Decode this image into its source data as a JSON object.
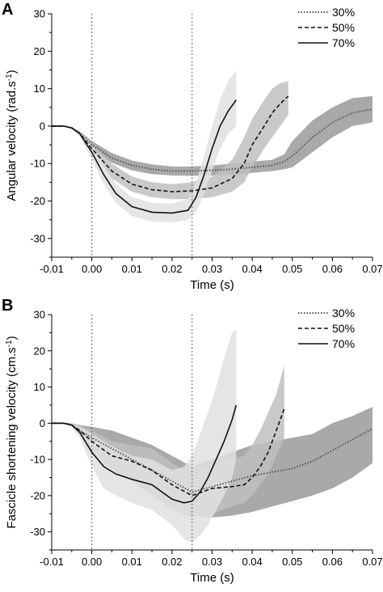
{
  "chart_data": [
    {
      "type": "line",
      "panel_label": "A",
      "xlabel": "Time (s)",
      "ylabel": "Angular velocity (rad.s",
      "ylabel_sup": "-1",
      "ylabel_tail": ")",
      "xlim": [
        -0.01,
        0.07
      ],
      "ylim": [
        -35,
        30
      ],
      "xticks": [
        -0.01,
        0.0,
        0.01,
        0.02,
        0.03,
        0.04,
        0.05,
        0.06,
        0.07
      ],
      "xtick_labels": [
        "-0.01",
        "0.00",
        "0.01",
        "0.02",
        "0.03",
        "0.04",
        "0.05",
        "0.06",
        "0.07"
      ],
      "yticks": [
        -30,
        -20,
        -10,
        0,
        10,
        20,
        30
      ],
      "ytick_labels": [
        "-30",
        "-20",
        "-10",
        "0",
        "10",
        "20",
        "30"
      ],
      "vlines": [
        0.0,
        0.025
      ],
      "legend_position": "top-right",
      "series": [
        {
          "name": "30%",
          "style": "dotted",
          "band_color": "#9a9a9a",
          "x": [
            -0.01,
            -0.007,
            -0.005,
            -0.003,
            0.0,
            0.005,
            0.01,
            0.015,
            0.02,
            0.025,
            0.03,
            0.035,
            0.04,
            0.045,
            0.048,
            0.05,
            0.055,
            0.06,
            0.065,
            0.07
          ],
          "y": [
            0,
            0,
            -0.5,
            -1.8,
            -5,
            -8.5,
            -10.5,
            -11.5,
            -12,
            -12,
            -11.8,
            -11.5,
            -11,
            -10.5,
            -9.5,
            -8,
            -3,
            1,
            3.5,
            4.5
          ],
          "lower": [
            0,
            0,
            -0.7,
            -2.3,
            -6,
            -9.8,
            -11.8,
            -12.8,
            -13.2,
            -13.3,
            -13.2,
            -13,
            -12.5,
            -12,
            -11.5,
            -11,
            -7,
            -3,
            0,
            1
          ],
          "upper": [
            0,
            0,
            -0.3,
            -1.3,
            -4,
            -7.2,
            -9.2,
            -10.2,
            -10.8,
            -10.8,
            -10.5,
            -10,
            -9.5,
            -9,
            -7.5,
            -4,
            1.5,
            5,
            7.5,
            8
          ]
        },
        {
          "name": "50%",
          "style": "dashed",
          "band_color": "#bfbfbf",
          "x": [
            -0.01,
            -0.007,
            -0.005,
            -0.003,
            0.0,
            0.005,
            0.01,
            0.015,
            0.02,
            0.025,
            0.03,
            0.035,
            0.038,
            0.04,
            0.043,
            0.045,
            0.047,
            0.049
          ],
          "y": [
            0,
            0,
            -0.5,
            -2,
            -6,
            -12,
            -15.5,
            -17,
            -17.5,
            -17.3,
            -16.5,
            -14,
            -10,
            -5,
            0,
            3.5,
            6,
            8
          ],
          "lower": [
            0,
            0,
            -0.7,
            -2.6,
            -7.5,
            -14,
            -17.5,
            -19,
            -19.5,
            -19.5,
            -19,
            -17.5,
            -15,
            -11,
            -6,
            -3,
            0,
            3
          ],
          "upper": [
            0,
            0,
            -0.3,
            -1.4,
            -4.5,
            -10,
            -13.5,
            -15,
            -15.5,
            -15,
            -13.5,
            -9,
            -3,
            2,
            7,
            10,
            11.5,
            12
          ]
        },
        {
          "name": "70%",
          "style": "solid",
          "band_color": "#e0e0e0",
          "x": [
            -0.01,
            -0.007,
            -0.005,
            -0.003,
            0.0,
            0.003,
            0.006,
            0.01,
            0.015,
            0.02,
            0.024,
            0.026,
            0.028,
            0.03,
            0.032,
            0.034,
            0.036
          ],
          "y": [
            0,
            0,
            -0.5,
            -2,
            -7,
            -13,
            -18,
            -21.5,
            -23,
            -23.2,
            -22.5,
            -19,
            -13,
            -6,
            0,
            4,
            7
          ],
          "lower": [
            0,
            0,
            -0.7,
            -2.8,
            -9,
            -15.5,
            -20.5,
            -24,
            -25.5,
            -25.7,
            -25,
            -23,
            -18,
            -12,
            -6,
            -2,
            0
          ],
          "upper": [
            0,
            0,
            -0.3,
            -1.2,
            -5,
            -10.5,
            -15.5,
            -19,
            -20.5,
            -20.7,
            -19.5,
            -15,
            -8,
            0,
            7,
            12,
            15
          ]
        }
      ]
    },
    {
      "type": "line",
      "panel_label": "B",
      "xlabel": "Time (s)",
      "ylabel": "Fascicle shortening velocity (cm.s",
      "ylabel_sup": "-1",
      "ylabel_tail": ")",
      "xlim": [
        -0.01,
        0.07
      ],
      "ylim": [
        -35,
        30
      ],
      "xticks": [
        -0.01,
        0.0,
        0.01,
        0.02,
        0.03,
        0.04,
        0.05,
        0.06,
        0.07
      ],
      "xtick_labels": [
        "-0.01",
        "0.00",
        "0.01",
        "0.02",
        "0.03",
        "0.04",
        "0.05",
        "0.06",
        "0.07"
      ],
      "yticks": [
        -30,
        -20,
        -10,
        0,
        10,
        20,
        30
      ],
      "ytick_labels": [
        "-30",
        "-20",
        "-10",
        "0",
        "10",
        "20",
        "30"
      ],
      "vlines": [
        0.0,
        0.025
      ],
      "legend_position": "top-right",
      "series": [
        {
          "name": "30%",
          "style": "dotted",
          "band_color": "#9a9a9a",
          "x": [
            -0.01,
            -0.007,
            -0.005,
            -0.003,
            0.0,
            0.005,
            0.01,
            0.015,
            0.02,
            0.025,
            0.03,
            0.035,
            0.04,
            0.045,
            0.05,
            0.055,
            0.06,
            0.065,
            0.07
          ],
          "y": [
            0,
            0,
            -0.5,
            -2,
            -4,
            -7,
            -10,
            -13,
            -16,
            -19,
            -17.5,
            -16,
            -14.5,
            -13.5,
            -12.5,
            -10.5,
            -7.5,
            -4.5,
            -1.5
          ],
          "lower": [
            0,
            0,
            -1,
            -3.5,
            -7,
            -12,
            -16,
            -20,
            -23,
            -25.5,
            -26,
            -25.5,
            -24.5,
            -23,
            -21.5,
            -20,
            -18,
            -15,
            -11
          ],
          "upper": [
            0,
            0,
            0,
            -0.5,
            -1,
            -2,
            -4,
            -6,
            -9,
            -12,
            -10,
            -8,
            -6,
            -5,
            -4,
            -3,
            0,
            2,
            4.5
          ]
        },
        {
          "name": "50%",
          "style": "dashed",
          "band_color": "#bfbfbf",
          "x": [
            -0.01,
            -0.007,
            -0.005,
            -0.003,
            0.0,
            0.005,
            0.01,
            0.015,
            0.02,
            0.025,
            0.03,
            0.035,
            0.038,
            0.04,
            0.042,
            0.044,
            0.046,
            0.048
          ],
          "y": [
            0,
            0,
            -0.5,
            -2,
            -5,
            -9,
            -10.5,
            -13,
            -17,
            -20,
            -18,
            -17.5,
            -17,
            -15,
            -12,
            -8,
            -2,
            4
          ],
          "lower": [
            0,
            0,
            -1,
            -3.5,
            -8,
            -13,
            -16,
            -20,
            -24,
            -26,
            -25,
            -23,
            -22,
            -20,
            -17,
            -14,
            -9,
            -4
          ],
          "upper": [
            0,
            0,
            0,
            -0.5,
            -2,
            -5,
            -6,
            -7,
            -11,
            -14,
            -12,
            -10,
            -9,
            -6,
            -2,
            3,
            8,
            16
          ]
        },
        {
          "name": "70%",
          "style": "solid",
          "band_color": "#e0e0e0",
          "x": [
            -0.01,
            -0.007,
            -0.005,
            -0.003,
            0.0,
            0.003,
            0.006,
            0.01,
            0.015,
            0.02,
            0.023,
            0.025,
            0.027,
            0.029,
            0.031,
            0.033,
            0.035,
            0.036
          ],
          "y": [
            0,
            0,
            -0.5,
            -2.5,
            -8,
            -12,
            -14,
            -15.5,
            -17,
            -21,
            -22,
            -21.5,
            -19,
            -15,
            -10,
            -5,
            1,
            5
          ],
          "lower": [
            0,
            0,
            -1,
            -4,
            -12,
            -18,
            -20,
            -22,
            -24,
            -28,
            -32,
            -33,
            -31,
            -28,
            -24,
            -20,
            -15,
            -10
          ],
          "upper": [
            0,
            0,
            0,
            -1,
            -3,
            -5,
            -7,
            -9,
            -10,
            -13,
            -12,
            -9,
            -3,
            3,
            10,
            18,
            25,
            26
          ]
        }
      ]
    }
  ]
}
